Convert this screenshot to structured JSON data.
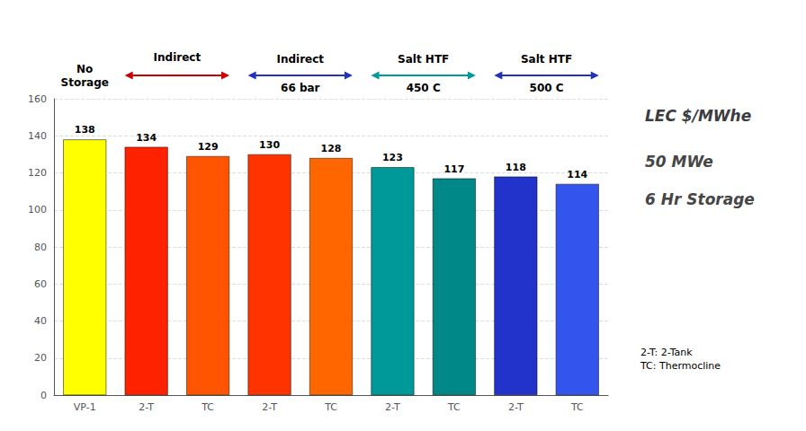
{
  "chart_data": {
    "type": "bar",
    "title": "LEC $/MWhe",
    "subtitle": "50 MWe\n6 Hr Storage",
    "categories": [
      "VP-1",
      "2-T",
      "TC",
      "2-T",
      "TC",
      "2-T",
      "TC",
      "2-T",
      "TC"
    ],
    "values": [
      138,
      134,
      129,
      130,
      128,
      123,
      117,
      118,
      114
    ],
    "colors": [
      "#FFFF00",
      "#FF2200",
      "#FF5500",
      "#FF3300",
      "#FF6600",
      "#009999",
      "#008888",
      "#2233CC",
      "#3355EE"
    ],
    "ylim": [
      0,
      160
    ],
    "yticks": [
      0,
      20,
      40,
      60,
      80,
      100,
      120,
      140,
      160
    ],
    "grid": true,
    "data_labels": true,
    "groups": [
      {
        "label": "No\nStorage",
        "bars": [
          0
        ]
      },
      {
        "label": "Indirect",
        "bars": [
          1,
          2
        ],
        "color": "#CC0000"
      },
      {
        "label": "Indirect\n66 bar",
        "bars": [
          3,
          4
        ],
        "color": "#2233BB"
      },
      {
        "label": "Salt HTF\n450 C",
        "bars": [
          5,
          6
        ],
        "color": "#009999"
      },
      {
        "label": "Salt HTF\n500 C",
        "bars": [
          7,
          8
        ],
        "color": "#2233BB"
      }
    ],
    "annotations": [
      "2-T: 2-Tank\nTC: Thermocline"
    ]
  }
}
